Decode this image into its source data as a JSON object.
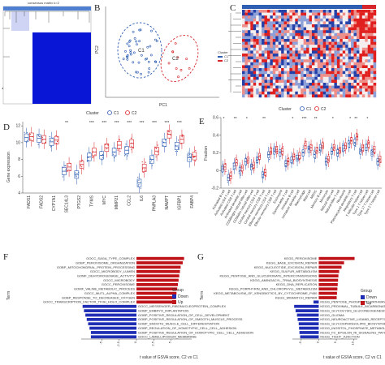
{
  "panel_labels": [
    "A",
    "B",
    "C",
    "D",
    "E",
    "F",
    "G"
  ],
  "panel_a": {
    "top_label": "consensus matrix k=2"
  },
  "panel_b": {
    "xlabel": "PC1",
    "ylabel": "PC2",
    "cluster_labels": [
      "C1",
      "C2"
    ]
  },
  "panel_c": {
    "legend_title": "Cluster",
    "legend_items": [
      "C1",
      "C2"
    ]
  },
  "cluster_legend": {
    "title": "Cluster",
    "items": [
      "C1",
      "C2"
    ]
  },
  "colors": {
    "c1": "#2f5fb3",
    "c2": "#d7262b",
    "blue_bar": "#1f2eb5",
    "red_bar": "#c0141b"
  },
  "chart_data": [
    {
      "panel": "D",
      "type": "box",
      "ylabel": "Gene expression",
      "categories": [
        "FADS1",
        "FADS2",
        "CYP7A1",
        "SEC14L3",
        "PTGS2",
        "TYMS",
        "MYC",
        "MMP21",
        "CCL2",
        "IL6",
        "PNPLA3",
        "NAMPT",
        "IGFBP1",
        "FABP4"
      ],
      "significance": [
        "",
        "",
        "",
        "**",
        "",
        "***",
        "***",
        "***",
        "***",
        "***",
        "***",
        "***",
        "***",
        ""
      ],
      "ylim": [
        4,
        12.5
      ],
      "yticks": [
        4,
        6,
        8,
        10,
        12
      ],
      "series": [
        {
          "name": "C1",
          "medians": [
            10.6,
            10.5,
            10.1,
            6.6,
            6.2,
            8.3,
            8.5,
            8.9,
            9.1,
            5.2,
            8.0,
            10.0,
            9.6,
            8.2
          ]
        },
        {
          "name": "C2",
          "medians": [
            10.7,
            10.4,
            10.3,
            7.1,
            7.4,
            8.9,
            9.4,
            9.7,
            9.9,
            7.0,
            9.0,
            11.0,
            10.4,
            8.4
          ]
        }
      ]
    },
    {
      "panel": "E",
      "type": "box",
      "ylabel": "Fraction",
      "categories": [
        "Activated B cell",
        "Activated CD4 T cell",
        "Activated CD8 T cell",
        "Activated dendritic cell",
        "CD56bright natural killer cell",
        "CD56dim natural killer cell",
        "Central memory CD4 T cell",
        "Central memory CD8 T cell",
        "Effector memeory CD4 T cell",
        "Effector memeory CD8 T cell",
        "Eosinophil",
        "Gamma delta T cell",
        "Immature B cell",
        "Immature dendritic cell",
        "Macrophage",
        "Mast cell",
        "MDSC",
        "Memory B cell",
        "Monocyte",
        "Natural killer cell",
        "Natural killer T cell",
        "Neutrophil",
        "Plasmacytoid dendritic cell",
        "Regulatory T cell",
        "T follicular helper cell",
        "Type 1 T helper cell",
        "Type 17 T helper cell",
        "Type 2 T helper cell"
      ],
      "significance": [
        "*",
        "",
        "**",
        "",
        "*",
        "",
        "",
        "**",
        "",
        "",
        "",
        "",
        "*",
        "",
        "***",
        "",
        "**",
        "",
        "",
        "*",
        "",
        "",
        "*",
        "**",
        "",
        "*",
        "",
        ""
      ],
      "ylim": [
        -0.2,
        0.6
      ],
      "yticks": [
        -0.2,
        0.0,
        0.2,
        0.4,
        0.6
      ],
      "series": [
        {
          "name": "C1",
          "medians": [
            0.02,
            -0.08,
            0.05,
            0.0,
            0.1,
            0.04,
            0.12,
            -0.05,
            0.18,
            0.22,
            0.2,
            0.08,
            0.12,
            0.14,
            0.2,
            0.24,
            0.18,
            0.26,
            0.1,
            0.22,
            0.2,
            0.25,
            0.3,
            0.32,
            0.22,
            0.26,
            0.2,
            0.1
          ]
        },
        {
          "name": "C2",
          "medians": [
            0.04,
            -0.06,
            0.09,
            0.03,
            0.12,
            0.06,
            0.16,
            -0.02,
            0.22,
            0.24,
            0.22,
            0.1,
            0.16,
            0.17,
            0.28,
            0.26,
            0.23,
            0.28,
            0.13,
            0.26,
            0.23,
            0.28,
            0.34,
            0.38,
            0.26,
            0.3,
            0.24,
            0.13
          ]
        }
      ]
    },
    {
      "panel": "F",
      "type": "bar",
      "orientation": "horizontal",
      "xlabel": "t value of GSVA score, C2 vs C1",
      "ylabel": "Term",
      "legend_title": "Group",
      "legend_items": [
        "Down",
        "Up"
      ],
      "categories": [
        "GOCC_SAGA_TYPE_COMPLEX",
        "GOBP_PEROXISOME_ORGANIZATION",
        "GOBP_MITOCHONDRIAL_PROTEIN_PROCESSING",
        "GOCC_MICROBODY_LUMEN",
        "GOMF_DEHYDROGENASE_ACTIVITY",
        "GOCC_MICROBODY",
        "GOCC_PEROXISOME",
        "GOMF_VALINE_METABOLIC_PROCESS",
        "GOCC_MUTL_ALPHA_COMPLEX",
        "GOBP_RESPONSE_TO_DECREASED_OXYGEN",
        "GOCC_TRANSCRIPTION_FACTOR_TFIIH_HOLO_COMPLEX",
        "GOCC_MESSENGER_RIBONUCLEOPROTEIN_COMPLEX",
        "GOBP_EMBRYO_IMPLANTATION",
        "GOBP_POSITIVE_REGULATION_OF_CELL_DEVELOPMENT",
        "GOBP_POSITIVE_REGULATION_OF_SMOOTH_MUSCLE_PROCESS",
        "GOBP_SMOOTH_MUSCLE_CELL_DIFFERENTIATION",
        "GOBP_REGULATION_OF_HOMOTYPIC_CELL_CELL_ADHESION",
        "GOBP_POSITIVE_REGULATION_OF_HOMOTYPIC_CELL_CELL_ADHESION",
        "GOCC_LAMELLIPODIUM_MEMBRANE"
      ],
      "values": [
        6.9,
        6.7,
        6.4,
        6.3,
        6.2,
        6.1,
        6.0,
        5.9,
        5.8,
        5.7,
        5.6,
        -7.8,
        -7.6,
        -7.4,
        -7.2,
        -7.0,
        -6.8,
        -6.6,
        -6.6
      ],
      "xticks": [
        -5,
        -2.5,
        0,
        2.5,
        5
      ],
      "xlim": [
        -8,
        8
      ]
    },
    {
      "panel": "G",
      "type": "bar",
      "orientation": "horizontal",
      "xlabel": "t value of GSVA score, C2 vs C1",
      "ylabel": "Term",
      "legend_title": "Group",
      "legend_items": [
        "Down",
        "Up"
      ],
      "categories": [
        "KEGG_PEROXISOME",
        "KEGG_BASE_EXCISION_REPAIR",
        "KEGG_NUCLEOTIDE_EXCISION_REPAIR",
        "KEGG_SULFUR_METABOLISM",
        "KEGG_PENTOSE_AND_GLUCURONATE_INTERCONVERSIONS",
        "KEGG_AMINOACYL_TRNA_BIOSYNTHESIS",
        "KEGG_DNA_REPLICATION",
        "KEGG_PORPHYRIN_AND_CHLOROPHYLL_METABOLISM",
        "KEGG_METABOLISM_OF_XENOBIOTICS_BY_CYTOCHROME_P450",
        "KEGG_MISMATCH_REPAIR",
        "KEGG_PENTOSE_PHOSPHATE_PATHWAY",
        "KEGG_PROXIMAL_TUBULE_BICARBONATE_RECLAMATION",
        "KEGG_GLYCOLYSIS_GLUCONEOGENESIS",
        "KEGG_GLIOMA",
        "KEGG_NEUROACTIVE_LIGAND_RECEPTOR_INTERACTION",
        "KEGG_GLYCOSPHINGOLIPID_BIOSYNTHESIS",
        "KEGG_INOSITOL_PHOSPHATE_METABOLISM",
        "KEGG_FC_EPSILON_RI_SIGNALING_PATHWAY",
        "KEGG_TIGHT_JUNCTION"
      ],
      "values": [
        10.2,
        7.2,
        6.5,
        5.8,
        5.6,
        5.5,
        5.4,
        5.3,
        5.2,
        5.1,
        -1.5,
        -7.0,
        -6.6,
        -6.2,
        -6.0,
        -5.7,
        -5.6,
        -5.5,
        -5.3
      ],
      "xticks": [
        -5,
        0,
        5,
        10
      ],
      "xlim": [
        -7.5,
        11
      ]
    }
  ]
}
